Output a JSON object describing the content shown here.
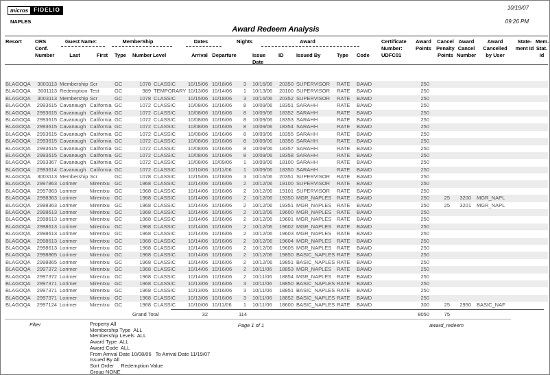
{
  "meta": {
    "date": "10/19/07",
    "time": "09:26 PM",
    "page": "Page 1 of 1",
    "report_id": "award_redeem"
  },
  "logo": {
    "brand_left": "micros",
    "brand_right": "FIDELIO",
    "property": "NAPLES"
  },
  "title": "Award Redeem Analysis",
  "table": {
    "groups": {
      "guest": "Guest Name:",
      "membership": "MemberShip",
      "dates": "Dates",
      "award": "Award"
    },
    "cols": {
      "resort": "Resort",
      "conf": "ORS\nConf.\nNumber",
      "last": "Last",
      "first": "First",
      "mtype": "Type",
      "mnumber": "Number",
      "mlevel": "Level",
      "arrival": "Arrival",
      "departure": "Departure",
      "nights": "Nights",
      "issue": "Issue\nDate",
      "id": "ID",
      "issued_by": "Issued By",
      "atype": "Type",
      "acode": "Code",
      "cert": "Certificate\nNumber:\nUDFC01",
      "points": "Award\nPoints",
      "penalty": "Cancel\nPenalty\nPoints",
      "cancel_no": "Award\nCancel\nNumber",
      "cancelled_by": "Award\nCancelled\nby User",
      "stmt": "State-\nment Id",
      "memstat": "Mem.\nStat. Id"
    },
    "rows": [
      [
        "BLAGOQA",
        "3003113",
        "Membership",
        "Scr",
        "GC",
        "1078",
        "CLASSIC",
        "10/15/06",
        "10/18/06",
        "3",
        "10/16/06",
        "20350",
        "SUPERVISOR",
        "RATE",
        "BAWD",
        "",
        "250",
        "",
        "",
        "",
        "",
        ""
      ],
      [
        "BLAGOQA",
        "3001113",
        "Redemption",
        "Test",
        "GC",
        "989",
        "TEMPORARY",
        "10/13/06",
        "10/14/06",
        "1",
        "10/13/06",
        "20100",
        "SUPERVISOR",
        "RATE",
        "BAWD",
        "",
        "250",
        "",
        "",
        "",
        "",
        ""
      ],
      [
        "BLAGOQA",
        "3003113",
        "Membership",
        "Scr",
        "GC",
        "1078",
        "CLASSIC",
        "10/15/06",
        "10/18/06",
        "3",
        "10/16/06",
        "20352",
        "SUPERVISOR",
        "RATE",
        "BAWD",
        "",
        "250",
        "",
        "",
        "",
        "",
        ""
      ],
      [
        "BLAGOQA",
        "2993615",
        "Cavanaugh",
        "California",
        "GC",
        "1072",
        "CLASSIC",
        "10/08/06",
        "10/16/06",
        "8",
        "10/09/06",
        "18351",
        "SARAHH",
        "RATE",
        "BAWD",
        "",
        "250",
        "",
        "",
        "",
        "",
        ""
      ],
      [
        "BLAGOQA",
        "2993615",
        "Cavanaugh",
        "California",
        "GC",
        "1072",
        "CLASSIC",
        "10/08/06",
        "10/16/06",
        "8",
        "10/09/06",
        "18352",
        "SARAHH",
        "RATE",
        "BAWD",
        "",
        "250",
        "",
        "",
        "",
        "",
        ""
      ],
      [
        "BLAGOQA",
        "2993615",
        "Cavanaugh",
        "California",
        "GC",
        "1072",
        "CLASSIC",
        "10/08/06",
        "10/16/06",
        "8",
        "10/09/06",
        "18353",
        "SARAHH",
        "RATE",
        "BAWD",
        "",
        "250",
        "",
        "",
        "",
        "",
        ""
      ],
      [
        "BLAGOQA",
        "2993615",
        "Cavanaugh",
        "California",
        "GC",
        "1072",
        "CLASSIC",
        "10/08/06",
        "10/16/06",
        "8",
        "10/09/06",
        "18354",
        "SARAHH",
        "RATE",
        "BAWD",
        "",
        "250",
        "",
        "",
        "",
        "",
        ""
      ],
      [
        "BLAGOQA",
        "2993615",
        "Cavanaugh",
        "California",
        "GC",
        "1072",
        "CLASSIC",
        "10/08/06",
        "10/16/06",
        "8",
        "10/09/06",
        "18355",
        "SARAHH",
        "RATE",
        "BAWD",
        "",
        "250",
        "",
        "",
        "",
        "",
        ""
      ],
      [
        "BLAGOQA",
        "2993615",
        "Cavanaugh",
        "California",
        "GC",
        "1072",
        "CLASSIC",
        "10/08/06",
        "10/16/06",
        "8",
        "10/09/06",
        "18356",
        "SARAHH",
        "RATE",
        "BAWD",
        "",
        "250",
        "",
        "",
        "",
        "",
        ""
      ],
      [
        "BLAGOQA",
        "2993615",
        "Cavanaugh",
        "California",
        "GC",
        "1072",
        "CLASSIC",
        "10/08/06",
        "10/16/06",
        "8",
        "10/09/06",
        "18357",
        "SARAHH",
        "RATE",
        "BAWD",
        "",
        "250",
        "",
        "",
        "",
        "",
        ""
      ],
      [
        "BLAGOQA",
        "2993615",
        "Cavanaugh",
        "California",
        "GC",
        "1072",
        "CLASSIC",
        "10/08/06",
        "10/16/06",
        "8",
        "10/09/06",
        "18358",
        "SARAHH",
        "RATE",
        "BAWD",
        "",
        "250",
        "",
        "",
        "",
        "",
        ""
      ],
      [
        "BLAGOQA",
        "2993367",
        "Cavanaugh",
        "California",
        "GC",
        "1072",
        "CLASSIC",
        "10/08/06",
        "10/09/06",
        "1",
        "10/09/06",
        "18100",
        "SARAHH",
        "RATE",
        "BAWD",
        "",
        "250",
        "",
        "",
        "",
        "",
        ""
      ],
      [
        "BLAGOQA",
        "2993614",
        "Cavanaugh",
        "California",
        "GC",
        "1072",
        "CLASSIC",
        "10/10/06",
        "10/11/06",
        "1",
        "10/09/06",
        "18350",
        "SARAHH",
        "RATE",
        "BAWD",
        "",
        "250",
        "",
        "",
        "",
        "",
        ""
      ],
      [
        "BLAGOQA",
        "3003113",
        "Membership",
        "Scr",
        "GC",
        "1078",
        "CLASSIC",
        "10/15/06",
        "10/18/06",
        "3",
        "10/16/06",
        "20351",
        "SUPERVISOR",
        "RATE",
        "BAWD",
        "",
        "250",
        "",
        "",
        "",
        "",
        ""
      ],
      [
        "BLAGOQA",
        "2997863",
        "Lorimer",
        "Mirentxu",
        "GC",
        "1968",
        "CLASSIC",
        "10/14/06",
        "10/16/06",
        "2",
        "10/12/06",
        "19100",
        "SUPERVISOR",
        "RATE",
        "BAWD",
        "",
        "250",
        "",
        "",
        "",
        "",
        ""
      ],
      [
        "BLAGOQA",
        "2997863",
        "Lorimer",
        "Mirentxu",
        "GC",
        "1968",
        "CLASSIC",
        "10/14/06",
        "10/16/06",
        "2",
        "10/12/06",
        "19101",
        "SUPERVISOR",
        "RATE",
        "BAWD",
        "",
        "250",
        "",
        "",
        "",
        "",
        ""
      ],
      [
        "BLAGOQA",
        "2998363",
        "Lorimer",
        "Mirentxu",
        "GC",
        "1968",
        "CLASSIC",
        "10/14/06",
        "10/16/06",
        "2",
        "10/12/06",
        "19350",
        "MGR_NAPLES",
        "RATE",
        "BAWD",
        "",
        "250",
        "25",
        "3200",
        "MGR_NAPL",
        "",
        ""
      ],
      [
        "BLAGOQA",
        "2998363",
        "Lorimer",
        "Mirentxu",
        "GC",
        "1968",
        "CLASSIC",
        "10/14/06",
        "10/16/06",
        "2",
        "10/12/06",
        "19351",
        "MGR_NAPLES",
        "RATE",
        "BAWD",
        "",
        "250",
        "25",
        "3201",
        "MGR_NAPL",
        "",
        ""
      ],
      [
        "BLAGOQA",
        "2998613",
        "Lorimer",
        "Mirentxu",
        "GC",
        "1968",
        "CLASSIC",
        "10/14/06",
        "10/16/06",
        "2",
        "10/12/06",
        "19600",
        "MGR_NAPLES",
        "RATE",
        "BAWD",
        "",
        "250",
        "",
        "",
        "",
        "",
        ""
      ],
      [
        "BLAGOQA",
        "2998613",
        "Lorimer",
        "Mirentxu",
        "GC",
        "1968",
        "CLASSIC",
        "10/14/06",
        "10/16/06",
        "2",
        "10/12/06",
        "19601",
        "MGR_NAPLES",
        "RATE",
        "BAWD",
        "",
        "250",
        "",
        "",
        "",
        "",
        ""
      ],
      [
        "BLAGOQA",
        "2998613",
        "Lorimer",
        "Mirentxu",
        "GC",
        "1968",
        "CLASSIC",
        "10/14/06",
        "10/16/06",
        "2",
        "10/12/06",
        "19602",
        "MGR_NAPLES",
        "RATE",
        "BAWD",
        "",
        "250",
        "",
        "",
        "",
        "",
        ""
      ],
      [
        "BLAGOQA",
        "2998613",
        "Lorimer",
        "Mirentxu",
        "GC",
        "1968",
        "CLASSIC",
        "10/14/06",
        "10/16/06",
        "2",
        "10/12/06",
        "19603",
        "MGR_NAPLES",
        "RATE",
        "BAWD",
        "",
        "250",
        "",
        "",
        "",
        "",
        ""
      ],
      [
        "BLAGOQA",
        "2998613",
        "Lorimer",
        "Mirentxu",
        "GC",
        "1968",
        "CLASSIC",
        "10/14/06",
        "10/16/06",
        "2",
        "10/12/06",
        "19604",
        "MGR_NAPLES",
        "RATE",
        "BAWD",
        "",
        "250",
        "",
        "",
        "",
        "",
        ""
      ],
      [
        "BLAGOQA",
        "2998613",
        "Lorimer",
        "Mirentxu",
        "GC",
        "1968",
        "CLASSIC",
        "10/14/06",
        "10/16/06",
        "2",
        "10/12/06",
        "19605",
        "MGR_NAPLES",
        "RATE",
        "BAWD",
        "",
        "250",
        "",
        "",
        "",
        "",
        ""
      ],
      [
        "BLAGOQA",
        "2998865",
        "Lorimer",
        "Mirentxu",
        "GC",
        "1968",
        "CLASSIC",
        "10/14/06",
        "10/16/06",
        "2",
        "10/12/06",
        "19850",
        "BASIC_NAPLES",
        "RATE",
        "BAWD",
        "",
        "250",
        "",
        "",
        "",
        "",
        ""
      ],
      [
        "BLAGOQA",
        "2998865",
        "Lorimer",
        "Mirentxu",
        "GC",
        "1968",
        "CLASSIC",
        "10/14/06",
        "10/16/06",
        "2",
        "10/12/06",
        "19851",
        "BASIC_NAPLES",
        "RATE",
        "BAWD",
        "",
        "250",
        "",
        "",
        "",
        "",
        ""
      ],
      [
        "BLAGOQA",
        "2997372",
        "Lorimer",
        "Mirentxu",
        "GC",
        "1968",
        "CLASSIC",
        "10/14/06",
        "10/16/06",
        "2",
        "10/11/06",
        "18853",
        "MGR_NAPLES",
        "RATE",
        "BAWD",
        "",
        "250",
        "",
        "",
        "",
        "",
        ""
      ],
      [
        "BLAGOQA",
        "2997372",
        "Lorimer",
        "Mirentxu",
        "GC",
        "1968",
        "CLASSIC",
        "10/14/06",
        "10/16/06",
        "2",
        "10/11/06",
        "18854",
        "MGR_NAPLES",
        "RATE",
        "BAWD",
        "",
        "250",
        "",
        "",
        "",
        "",
        ""
      ],
      [
        "BLAGOQA",
        "2997371",
        "Lorimer",
        "Mirentxu",
        "GC",
        "1968",
        "CLASSIC",
        "10/13/06",
        "10/16/06",
        "3",
        "10/11/06",
        "18850",
        "BASIC_NAPLES",
        "RATE",
        "BAWD",
        "",
        "250",
        "",
        "",
        "",
        "",
        ""
      ],
      [
        "BLAGOQA",
        "2997371",
        "Lorimer",
        "Mirentxu",
        "GC",
        "1968",
        "CLASSIC",
        "10/13/06",
        "10/16/06",
        "3",
        "10/11/06",
        "18851",
        "BASIC_NAPLES",
        "RATE",
        "BAWD",
        "",
        "250",
        "",
        "",
        "",
        "",
        ""
      ],
      [
        "BLAGOQA",
        "2997371",
        "Lorimer",
        "Mirentxu",
        "GC",
        "1968",
        "CLASSIC",
        "10/13/06",
        "10/16/06",
        "3",
        "10/11/06",
        "18852",
        "BASIC_NAPLES",
        "RATE",
        "BAWD",
        "",
        "250",
        "",
        "",
        "",
        "",
        ""
      ],
      [
        "BLAGOQA",
        "2997124",
        "Lorimer",
        "Mirentxu",
        "GC",
        "1968",
        "CLASSIC",
        "10/10/06",
        "10/11/06",
        "1",
        "10/11/06",
        "18600",
        "BASIC_NAPLES",
        "RATE",
        "BAWD",
        "",
        "300",
        "25",
        "2950",
        "BASIC_NAF",
        "",
        ""
      ]
    ],
    "total": {
      "label": "Grand Total",
      "count": "32",
      "nights": "114",
      "points": "8050",
      "penalty": "75"
    }
  },
  "footer": {
    "filter_label": "Filter",
    "filters": [
      "Property All",
      "Membership Type  ALL",
      "Membership Levels  ALL",
      "Award Type  ALL",
      "Award Code  ALL",
      "From Arrival Date 10/08/06   To Arrival Date 11/19/07",
      "Issued By All",
      "Sort Order     Redemption Value",
      "Group NONE"
    ]
  }
}
